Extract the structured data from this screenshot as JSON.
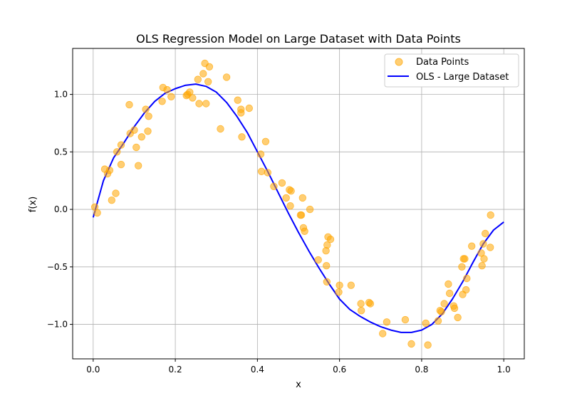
{
  "chart_data": {
    "type": "scatter",
    "title": "OLS Regression Model on Large Dataset with Data Points",
    "xlabel": "x",
    "ylabel": "f(x)",
    "xlim": [
      -0.05,
      1.05
    ],
    "ylim": [
      -1.3,
      1.4
    ],
    "x_ticks": [
      0.0,
      0.2,
      0.4,
      0.6,
      0.8,
      1.0
    ],
    "x_tick_labels": [
      "0.0",
      "0.2",
      "0.4",
      "0.6",
      "0.8",
      "1.0"
    ],
    "y_ticks": [
      -1.0,
      -0.5,
      0.0,
      0.5,
      1.0
    ],
    "y_tick_labels": [
      "−1.0",
      "−0.5",
      "0.0",
      "0.5",
      "1.0"
    ],
    "grid": true,
    "legend_position": "top-right",
    "colors": {
      "points": "#ffa500",
      "line": "#0000ff"
    },
    "series": [
      {
        "name": "Data Points",
        "kind": "scatter",
        "points": [
          [
            0.004,
            0.02
          ],
          [
            0.01,
            -0.03
          ],
          [
            0.028,
            0.35
          ],
          [
            0.035,
            0.31
          ],
          [
            0.04,
            0.34
          ],
          [
            0.045,
            0.08
          ],
          [
            0.055,
            0.14
          ],
          [
            0.058,
            0.5
          ],
          [
            0.068,
            0.56
          ],
          [
            0.068,
            0.39
          ],
          [
            0.088,
            0.91
          ],
          [
            0.09,
            0.66
          ],
          [
            0.1,
            0.69
          ],
          [
            0.105,
            0.54
          ],
          [
            0.11,
            0.38
          ],
          [
            0.118,
            0.63
          ],
          [
            0.128,
            0.87
          ],
          [
            0.133,
            0.68
          ],
          [
            0.135,
            0.81
          ],
          [
            0.168,
            0.94
          ],
          [
            0.17,
            1.06
          ],
          [
            0.18,
            1.04
          ],
          [
            0.19,
            0.98
          ],
          [
            0.227,
            0.99
          ],
          [
            0.23,
            1.0
          ],
          [
            0.235,
            1.02
          ],
          [
            0.242,
            0.97
          ],
          [
            0.255,
            1.13
          ],
          [
            0.258,
            0.92
          ],
          [
            0.268,
            1.18
          ],
          [
            0.272,
            1.27
          ],
          [
            0.275,
            0.92
          ],
          [
            0.28,
            1.11
          ],
          [
            0.283,
            1.24
          ],
          [
            0.31,
            0.7
          ],
          [
            0.325,
            1.15
          ],
          [
            0.352,
            0.95
          ],
          [
            0.36,
            0.87
          ],
          [
            0.36,
            0.84
          ],
          [
            0.362,
            0.63
          ],
          [
            0.38,
            0.88
          ],
          [
            0.408,
            0.48
          ],
          [
            0.41,
            0.33
          ],
          [
            0.42,
            0.59
          ],
          [
            0.425,
            0.32
          ],
          [
            0.44,
            0.2
          ],
          [
            0.46,
            0.23
          ],
          [
            0.47,
            0.1
          ],
          [
            0.478,
            0.17
          ],
          [
            0.48,
            0.03
          ],
          [
            0.482,
            0.16
          ],
          [
            0.505,
            -0.05
          ],
          [
            0.507,
            -0.05
          ],
          [
            0.51,
            0.1
          ],
          [
            0.512,
            -0.16
          ],
          [
            0.515,
            -0.19
          ],
          [
            0.528,
            0.0
          ],
          [
            0.548,
            -0.44
          ],
          [
            0.567,
            -0.36
          ],
          [
            0.568,
            -0.49
          ],
          [
            0.569,
            -0.63
          ],
          [
            0.57,
            -0.31
          ],
          [
            0.572,
            -0.24
          ],
          [
            0.578,
            -0.26
          ],
          [
            0.598,
            -0.72
          ],
          [
            0.6,
            -0.66
          ],
          [
            0.628,
            -0.66
          ],
          [
            0.652,
            -0.82
          ],
          [
            0.653,
            -0.88
          ],
          [
            0.672,
            -0.81
          ],
          [
            0.675,
            -0.82
          ],
          [
            0.705,
            -1.08
          ],
          [
            0.715,
            -0.98
          ],
          [
            0.76,
            -0.96
          ],
          [
            0.775,
            -1.17
          ],
          [
            0.81,
            -0.99
          ],
          [
            0.815,
            -1.18
          ],
          [
            0.84,
            -0.97
          ],
          [
            0.845,
            -0.88
          ],
          [
            0.848,
            -0.89
          ],
          [
            0.855,
            -0.82
          ],
          [
            0.865,
            -0.65
          ],
          [
            0.868,
            -0.73
          ],
          [
            0.878,
            -0.84
          ],
          [
            0.88,
            -0.86
          ],
          [
            0.888,
            -0.94
          ],
          [
            0.898,
            -0.5
          ],
          [
            0.9,
            -0.74
          ],
          [
            0.902,
            -0.43
          ],
          [
            0.905,
            -0.43
          ],
          [
            0.908,
            -0.7
          ],
          [
            0.91,
            -0.6
          ],
          [
            0.922,
            -0.32
          ],
          [
            0.945,
            -0.38
          ],
          [
            0.947,
            -0.49
          ],
          [
            0.95,
            -0.3
          ],
          [
            0.952,
            -0.43
          ],
          [
            0.955,
            -0.21
          ],
          [
            0.967,
            -0.33
          ],
          [
            0.968,
            -0.05
          ]
        ]
      },
      {
        "name": "OLS - Large Dataset",
        "kind": "line",
        "points": [
          [
            0.0,
            -0.07
          ],
          [
            0.025,
            0.25
          ],
          [
            0.05,
            0.45
          ],
          [
            0.075,
            0.58
          ],
          [
            0.1,
            0.72
          ],
          [
            0.125,
            0.84
          ],
          [
            0.15,
            0.94
          ],
          [
            0.175,
            1.01
          ],
          [
            0.2,
            1.05
          ],
          [
            0.225,
            1.08
          ],
          [
            0.25,
            1.09
          ],
          [
            0.275,
            1.07
          ],
          [
            0.3,
            1.02
          ],
          [
            0.325,
            0.93
          ],
          [
            0.35,
            0.81
          ],
          [
            0.375,
            0.67
          ],
          [
            0.4,
            0.5
          ],
          [
            0.425,
            0.33
          ],
          [
            0.45,
            0.15
          ],
          [
            0.475,
            -0.03
          ],
          [
            0.5,
            -0.2
          ],
          [
            0.525,
            -0.36
          ],
          [
            0.55,
            -0.51
          ],
          [
            0.575,
            -0.65
          ],
          [
            0.6,
            -0.78
          ],
          [
            0.625,
            -0.87
          ],
          [
            0.65,
            -0.93
          ],
          [
            0.675,
            -0.98
          ],
          [
            0.7,
            -1.02
          ],
          [
            0.725,
            -1.05
          ],
          [
            0.75,
            -1.07
          ],
          [
            0.775,
            -1.07
          ],
          [
            0.8,
            -1.05
          ],
          [
            0.825,
            -1.0
          ],
          [
            0.85,
            -0.91
          ],
          [
            0.875,
            -0.78
          ],
          [
            0.9,
            -0.63
          ],
          [
            0.925,
            -0.46
          ],
          [
            0.95,
            -0.3
          ],
          [
            0.975,
            -0.18
          ],
          [
            1.0,
            -0.11
          ]
        ]
      }
    ]
  }
}
